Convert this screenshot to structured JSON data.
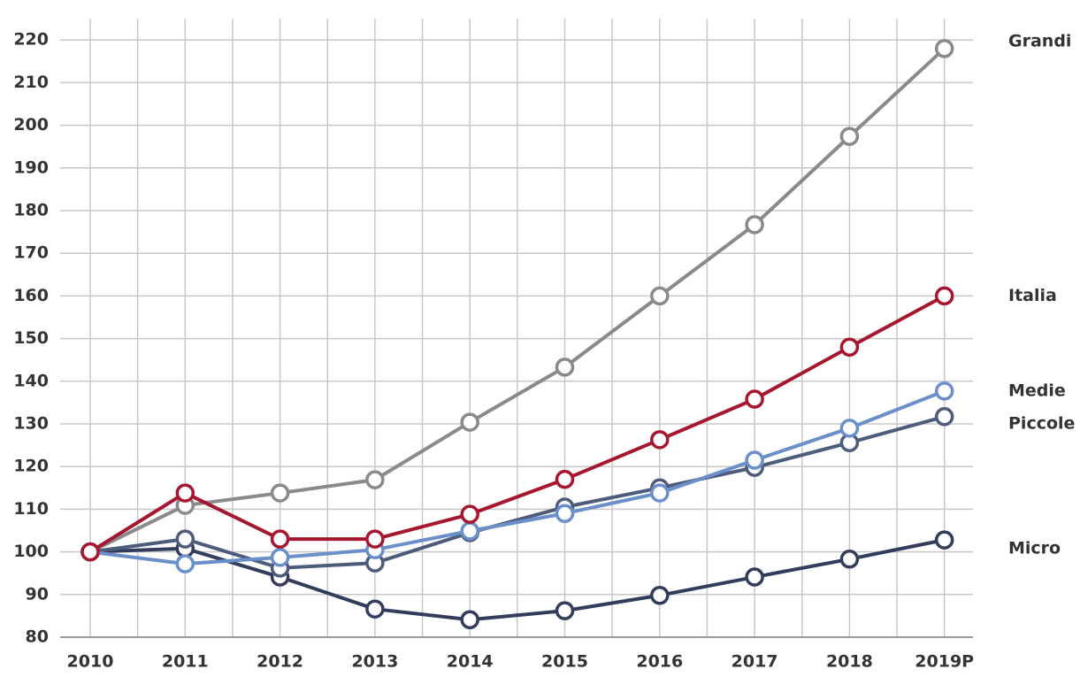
{
  "chart_data": {
    "type": "line",
    "categories": [
      "2010",
      "2011",
      "2012",
      "2013",
      "2014",
      "2015",
      "2016",
      "2017",
      "2018",
      "2019P"
    ],
    "series": [
      {
        "name": "Grandi",
        "color": "#8a8a8a",
        "values": [
          100,
          110.9,
          113.8,
          116.9,
          130.4,
          143.3,
          160,
          176.7,
          197.4,
          218
        ]
      },
      {
        "name": "Italia",
        "color": "#a6172f",
        "values": [
          100,
          113.8,
          103,
          103,
          108.8,
          117,
          126.3,
          135.8,
          148,
          160
        ]
      },
      {
        "name": "Medie",
        "color": "#6a8fc9",
        "values": [
          100,
          97.2,
          98.7,
          100.5,
          104.9,
          109,
          113.8,
          121.5,
          129,
          137.7
        ]
      },
      {
        "name": "Piccole",
        "color": "#4e5c7c",
        "values": [
          100,
          103,
          96.2,
          97.4,
          104.5,
          110.5,
          115,
          119.8,
          125.6,
          131.7
        ]
      },
      {
        "name": "Micro",
        "color": "#323d5c",
        "values": [
          100,
          100.8,
          94.1,
          86.6,
          84.1,
          86.2,
          89.8,
          94.1,
          98.3,
          102.8
        ]
      }
    ],
    "ylim": [
      80,
      225
    ],
    "yticks": [
      80,
      90,
      100,
      110,
      120,
      130,
      140,
      150,
      160,
      170,
      180,
      190,
      200,
      210,
      220
    ],
    "grid": true
  }
}
